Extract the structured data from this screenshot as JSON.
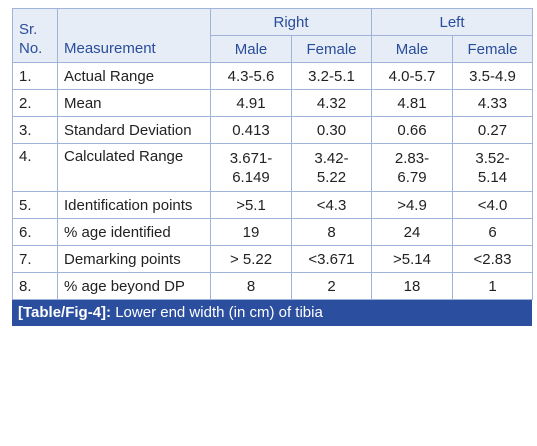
{
  "table": {
    "header": {
      "sr": [
        "Sr.",
        "No."
      ],
      "measurement": "Measurement",
      "groups": [
        "Right",
        "Left"
      ],
      "sub": [
        "Male",
        "Female",
        "Male",
        "Female"
      ]
    },
    "rows": [
      {
        "no": "1.",
        "measurement": "Actual Range",
        "values": [
          [
            "4.3-5.6"
          ],
          [
            "3.2-5.1"
          ],
          [
            "4.0-5.7"
          ],
          [
            "3.5-4.9"
          ]
        ]
      },
      {
        "no": "2.",
        "measurement": "Mean",
        "values": [
          [
            "4.91"
          ],
          [
            "4.32"
          ],
          [
            "4.81"
          ],
          [
            "4.33"
          ]
        ]
      },
      {
        "no": "3.",
        "measurement": "Standard Deviation",
        "values": [
          [
            "0.413"
          ],
          [
            "0.30"
          ],
          [
            "0.66"
          ],
          [
            "0.27"
          ]
        ]
      },
      {
        "no": "4.",
        "measurement": "Calculated Range",
        "values": [
          [
            "3.671-",
            "6.149"
          ],
          [
            "3.42-",
            "5.22"
          ],
          [
            "2.83-",
            "6.79"
          ],
          [
            "3.52-",
            "5.14"
          ]
        ]
      },
      {
        "no": "5.",
        "measurement": "Identification points",
        "values": [
          [
            ">5.1"
          ],
          [
            "<4.3"
          ],
          [
            ">4.9"
          ],
          [
            "<4.0"
          ]
        ]
      },
      {
        "no": "6.",
        "measurement": "% age identified",
        "values": [
          [
            "19"
          ],
          [
            "8"
          ],
          [
            "24"
          ],
          [
            "6"
          ]
        ]
      },
      {
        "no": "7.",
        "measurement": "Demarking points",
        "values": [
          [
            "> 5.22"
          ],
          [
            "<3.671"
          ],
          [
            ">5.14"
          ],
          [
            "<2.83"
          ]
        ]
      },
      {
        "no": "8.",
        "measurement": "% age beyond DP",
        "values": [
          [
            "8"
          ],
          [
            "2"
          ],
          [
            "18"
          ],
          [
            "1"
          ]
        ]
      }
    ],
    "caption": {
      "label": "[Table/Fig-4]:",
      "text": " Lower end width (in cm) of tibia"
    }
  }
}
